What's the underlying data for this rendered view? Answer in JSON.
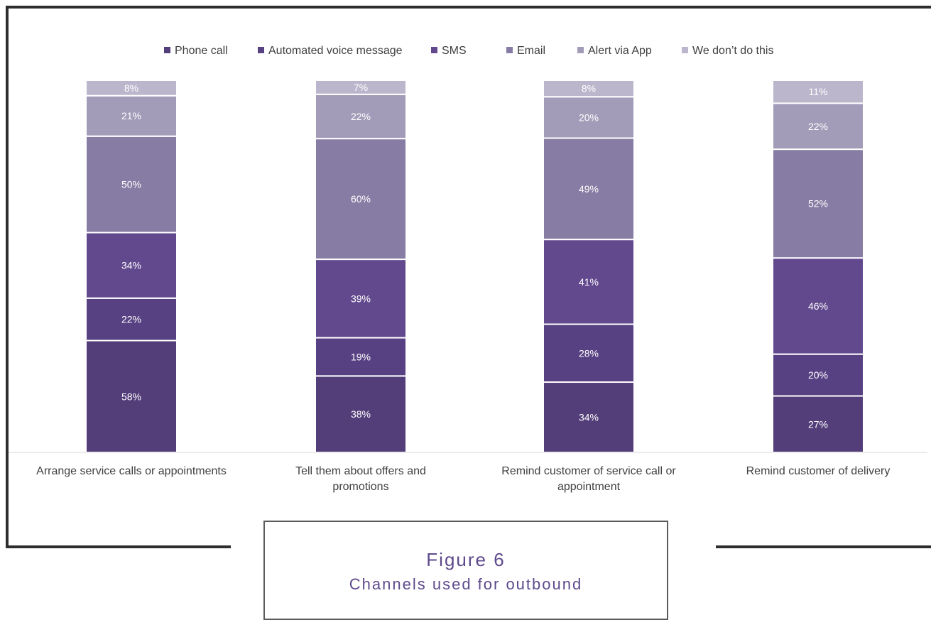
{
  "chart_data": {
    "type": "bar",
    "stacked": true,
    "categories": [
      [
        "Arrange service calls or appointments"
      ],
      [
        "Tell them about offers and",
        "promotions"
      ],
      [
        "Remind customer of service call or",
        "appointment"
      ],
      [
        "Remind customer of delivery"
      ]
    ],
    "series": [
      {
        "name": "Phone call",
        "values": [
          58,
          38,
          34,
          27
        ],
        "color": "#533e7a"
      },
      {
        "name": "Automated voice message",
        "values": [
          22,
          19,
          28,
          20
        ],
        "color": "#584183"
      },
      {
        "name": "SMS",
        "values": [
          34,
          39,
          41,
          46
        ],
        "color": "#62498e"
      },
      {
        "name": "Email",
        "values": [
          50,
          60,
          49,
          52
        ],
        "color": "#877ca3"
      },
      {
        "name": "Alert via App",
        "values": [
          21,
          22,
          20,
          22
        ],
        "color": "#a29cb8"
      },
      {
        "name": "We don’t do this",
        "values": [
          8,
          7,
          8,
          11
        ],
        "color": "#bcb6cd"
      }
    ],
    "value_suffix": "%",
    "legend_position": "top",
    "grid": false
  },
  "caption": {
    "number": "Figure 6",
    "title": "Channels used for outbound"
  }
}
